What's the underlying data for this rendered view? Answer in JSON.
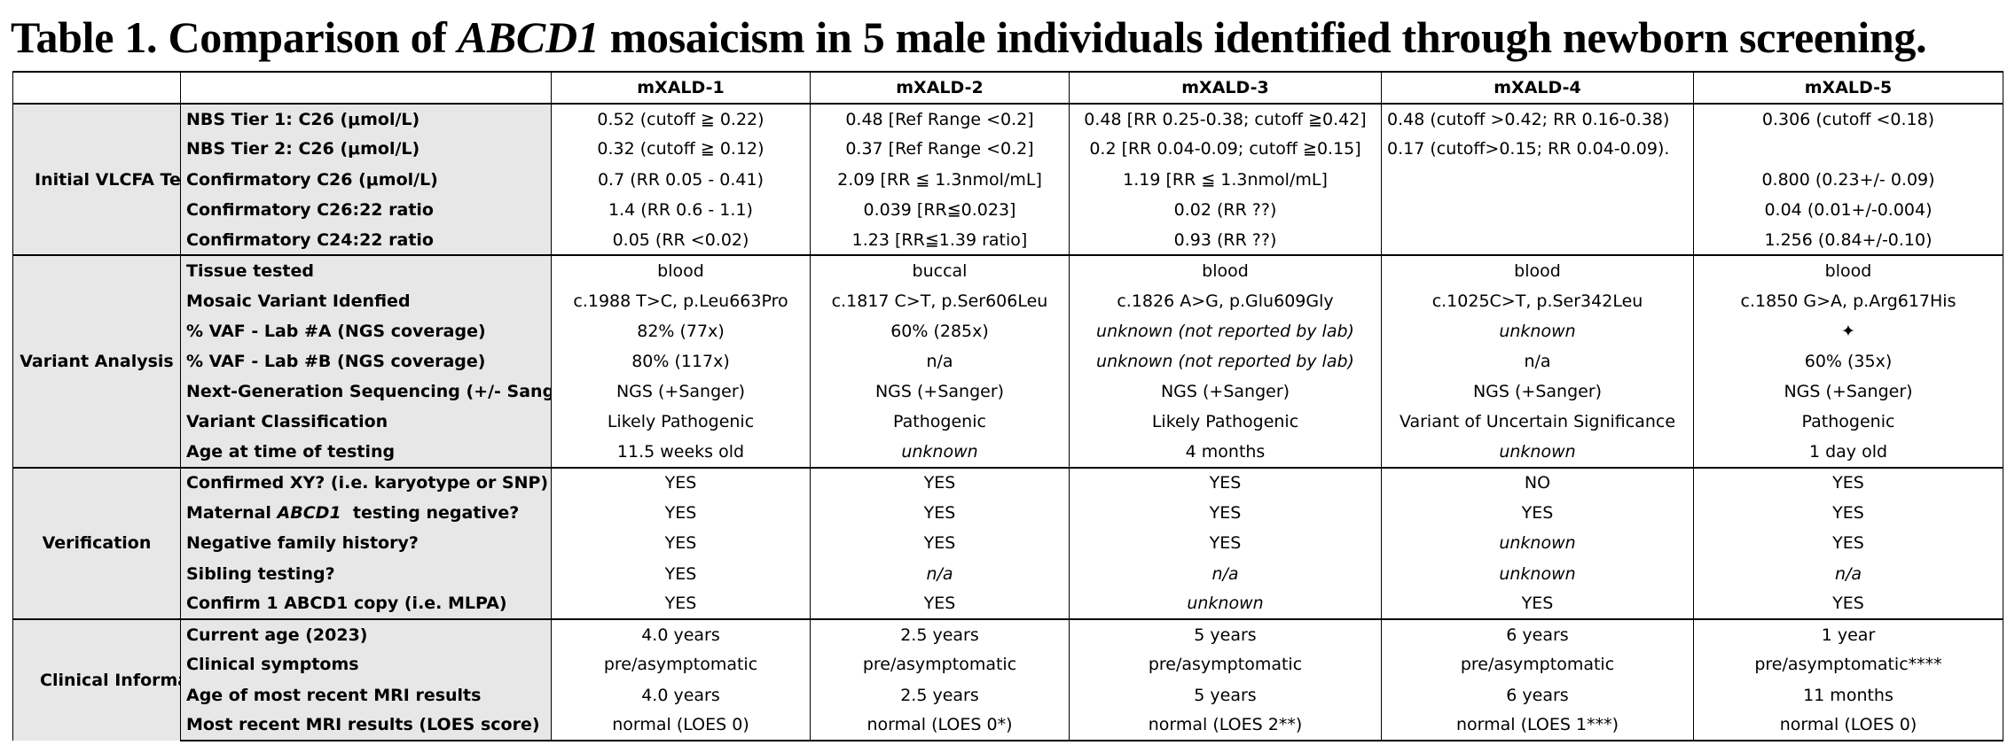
{
  "title": {
    "prefix": "Table 1. Comparison of ",
    "gene": "ABCD1",
    "suffix": " mosaicism in 5 male individuals identified through newborn screening."
  },
  "columns": [
    "",
    "",
    "mXALD-1",
    "mXALD-2",
    "mXALD-3",
    "mXALD-4",
    "mXALD-5"
  ],
  "sections": [
    {
      "name": "Initial VLCFA Testing",
      "rows": [
        {
          "label": "NBS Tier 1: C26 (μmol/L)",
          "values": [
            "0.52 (cutoff ≧ 0.22)",
            "0.48  [Ref Range <0.2]",
            "0.48 [RR 0.25-0.38; cutoff ≧0.42]",
            "0.48 (cutoff >0.42; RR 0.16-0.38)",
            "0.306 (cutoff <0.18)"
          ]
        },
        {
          "label": "NBS Tier 2: C26 (μmol/L)",
          "values": [
            "0.32 (cutoff ≧ 0.12)",
            "0.37 [Ref Range <0.2]",
            "0.2  [RR 0.04-0.09; cutoff ≧0.15]",
            "0.17 (cutoff>0.15; RR 0.04-0.09).",
            ""
          ]
        },
        {
          "label": "Confirmatory C26 (μmol/L)",
          "values": [
            "0.7 (RR 0.05 - 0.41)",
            "2.09 [RR ≦ 1.3nmol/mL]",
            "1.19 [RR ≦ 1.3nmol/mL]",
            "",
            "0.800 (0.23+/- 0.09)"
          ]
        },
        {
          "label": "Confirmatory C26:22 ratio",
          "values": [
            "1.4 (RR 0.6 - 1.1)",
            "0.039 [RR≦0.023]",
            "0.02 (RR ??)",
            "",
            "0.04 (0.01+/-0.004)"
          ]
        },
        {
          "label": "Confirmatory C24:22 ratio",
          "values": [
            "0.05 (RR <0.02)",
            "1.23 [RR≦1.39 ratio]",
            "0.93 (RR ??)",
            "",
            "1.256 (0.84+/-0.10)"
          ]
        }
      ]
    },
    {
      "name": "Variant Analysis",
      "rows": [
        {
          "label": "Tissue tested",
          "values": [
            "blood",
            "buccal",
            "blood",
            "blood",
            "blood"
          ]
        },
        {
          "label": "Mosaic Variant Idenfied",
          "values": [
            "c.1988 T>C, p.Leu663Pro",
            "c.1817 C>T, p.Ser606Leu",
            "c.1826 A>G, p.Glu609Gly",
            "c.1025C>T, p.Ser342Leu",
            "c.1850 G>A, p.Arg617His"
          ]
        },
        {
          "label": "% VAF - Lab #A (NGS coverage)",
          "values": [
            "82% (77x)",
            "60% (285x)",
            "unknown (not reported by lab)",
            "unknown",
            "✦"
          ]
        },
        {
          "label": "% VAF - Lab #B (NGS coverage)",
          "values": [
            "80% (117x)",
            "n/a",
            "unknown (not reported by lab)",
            "n/a",
            "60% (35x)"
          ]
        },
        {
          "label": "Next-Generation Sequencing (+/- Sanger)",
          "values": [
            "NGS (+Sanger)",
            "NGS (+Sanger)",
            "NGS (+Sanger)",
            "NGS (+Sanger)",
            "NGS (+Sanger)"
          ]
        },
        {
          "label": "Variant Classification",
          "values": [
            "Likely Pathogenic",
            "Pathogenic",
            "Likely Pathogenic",
            "Variant of Uncertain Significance",
            "Pathogenic"
          ]
        },
        {
          "label": "Age at time of testing",
          "values": [
            "11.5 weeks old",
            "unknown",
            "4 months",
            "unknown",
            "1 day old"
          ]
        }
      ]
    },
    {
      "name": "Verification",
      "rows": [
        {
          "label": "Confirmed XY? (i.e. karyotype or SNP)",
          "values": [
            "YES",
            "YES",
            "YES",
            "NO",
            "YES"
          ]
        },
        {
          "label_prefix": "Maternal ",
          "label_em": "ABCD1",
          "label_suffix": "  testing negative?",
          "values": [
            "YES",
            "YES",
            "YES",
            "YES",
            "YES"
          ]
        },
        {
          "label": "Negative family history?",
          "values": [
            "YES",
            "YES",
            "YES",
            "unknown",
            "YES"
          ]
        },
        {
          "label": "Sibling testing?",
          "values": [
            "YES",
            "n/a",
            "n/a",
            "unknown",
            "n/a"
          ]
        },
        {
          "label": "Confirm 1 ABCD1 copy (i.e. MLPA)",
          "values": [
            "YES",
            "YES",
            "unknown",
            "YES",
            "YES"
          ]
        }
      ]
    },
    {
      "name": "Clinical Information",
      "rows": [
        {
          "label": "Current age (2023)",
          "values": [
            "4.0 years",
            "2.5 years",
            "5 years",
            "6 years",
            "1 year"
          ]
        },
        {
          "label": "Clinical symptoms",
          "values": [
            "pre/asymptomatic",
            "pre/asymptomatic",
            "pre/asymptomatic",
            "pre/asymptomatic",
            "pre/asymptomatic****"
          ]
        },
        {
          "label": "Age of most recent MRI results",
          "values": [
            "4.0 years",
            "2.5 years",
            "5 years",
            "6 years",
            "11 months"
          ]
        },
        {
          "label": "Most recent MRI results (LOES score)",
          "values": [
            "normal (LOES 0)",
            "normal (LOES 0*)",
            "normal (LOES 2**)",
            "normal (LOES 1***)",
            "normal (LOES 0)"
          ]
        }
      ]
    }
  ]
}
